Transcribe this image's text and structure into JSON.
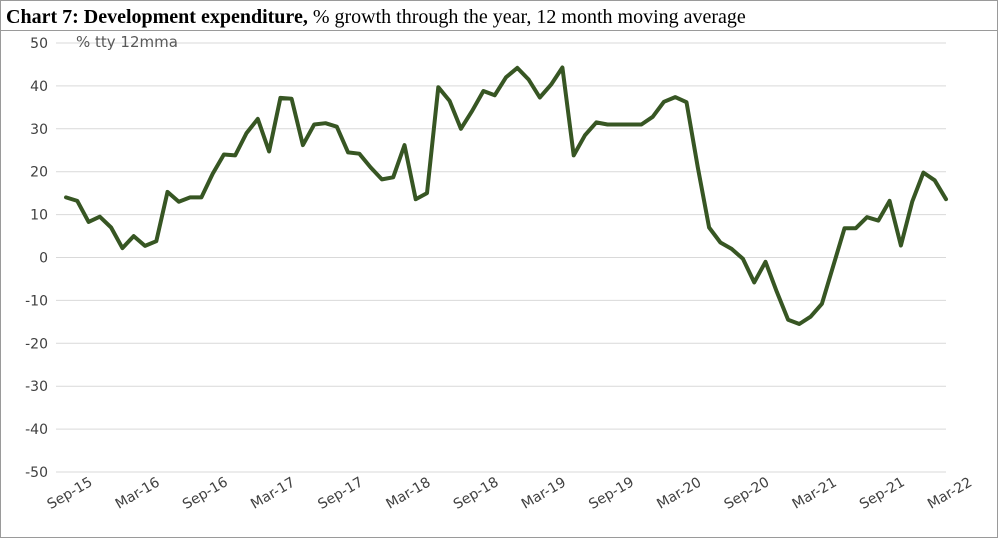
{
  "title": {
    "bold": "Chart 7: Development expenditure,",
    "rest": " % growth through the year, 12 month moving average"
  },
  "chart_data": {
    "type": "line",
    "annotation": "% tty 12mma",
    "ylim": [
      -50,
      50
    ],
    "yticks": [
      50,
      40,
      30,
      20,
      10,
      0,
      -10,
      -20,
      -30,
      -40,
      -50
    ],
    "xlim": [
      0,
      78
    ],
    "xticks": [
      {
        "label": "Sep-15",
        "x": 0
      },
      {
        "label": "Mar-16",
        "x": 6
      },
      {
        "label": "Sep-16",
        "x": 12
      },
      {
        "label": "Mar-17",
        "x": 18
      },
      {
        "label": "Sep-17",
        "x": 24
      },
      {
        "label": "Mar-18",
        "x": 30
      },
      {
        "label": "Sep-18",
        "x": 36
      },
      {
        "label": "Mar-19",
        "x": 42
      },
      {
        "label": "Sep-19",
        "x": 48
      },
      {
        "label": "Mar-20",
        "x": 54
      },
      {
        "label": "Sep-20",
        "x": 60
      },
      {
        "label": "Mar-21",
        "x": 66
      },
      {
        "label": "Sep-21",
        "x": 72
      },
      {
        "label": "Mar-22",
        "x": 78
      }
    ],
    "grid": "horizontal",
    "line_color": "#375623",
    "series": [
      {
        "values": [
          14,
          13.2,
          8.3,
          9.5,
          7,
          2.2,
          5,
          2.7,
          3.8,
          15.3,
          13,
          14,
          14,
          19.5,
          24,
          23.8,
          29,
          32.3,
          24.7,
          37.2,
          37,
          26.2,
          31,
          31.3,
          30.5,
          24.5,
          24.2,
          21,
          18.2,
          18.7,
          26.2,
          13.6,
          15,
          39.7,
          36.5,
          30,
          34.2,
          38.8,
          37.8,
          42,
          44.2,
          41.5,
          37.3,
          40.3,
          44.3,
          23.8,
          28.5,
          31.5,
          31,
          31,
          31,
          31,
          32.8,
          36.3,
          37.4,
          36.2,
          21,
          7,
          3.5,
          2,
          -0.3,
          -5.8,
          -1,
          -8,
          -14.5,
          -15.5,
          -13.8,
          -10.8,
          -2,
          6.8,
          6.8,
          9.4,
          8.6,
          13.2,
          2.8,
          13,
          19.8,
          18,
          13.6
        ]
      }
    ]
  }
}
